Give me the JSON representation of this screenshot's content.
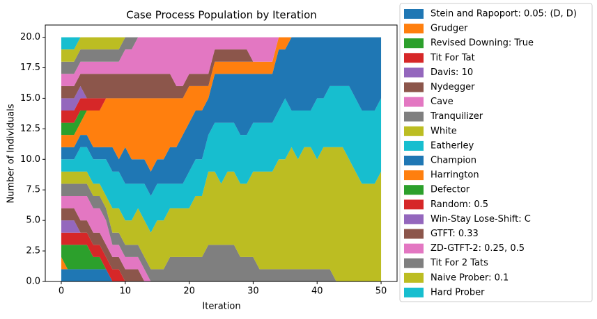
{
  "chart_data": {
    "type": "stackedarea",
    "title": "Case Process Population by Iteration",
    "x_label": "Iteration",
    "y_label": "Number of Individuals",
    "x": [
      0,
      1,
      2,
      3,
      4,
      5,
      6,
      7,
      8,
      9,
      10,
      11,
      12,
      13,
      14,
      15,
      16,
      17,
      18,
      19,
      20,
      21,
      22,
      23,
      24,
      25,
      26,
      27,
      28,
      29,
      30,
      31,
      32,
      33,
      34,
      35,
      36,
      37,
      38,
      39,
      40,
      41,
      42,
      43,
      44,
      45,
      46,
      47,
      48,
      49,
      50
    ],
    "xlim": [
      -2.5,
      52.5
    ],
    "xticks": [
      0,
      10,
      20,
      30,
      40,
      50
    ],
    "ylim": [
      0,
      21
    ],
    "yticks": [
      {
        "value": 0,
        "label": "0.0"
      },
      {
        "value": 2.5,
        "label": "2.5"
      },
      {
        "value": 5,
        "label": "5.0"
      },
      {
        "value": 7.5,
        "label": "7.5"
      },
      {
        "value": 10,
        "label": "10.0"
      },
      {
        "value": 12.5,
        "label": "12.5"
      },
      {
        "value": 15,
        "label": "15.0"
      },
      {
        "value": 17.5,
        "label": "17.5"
      },
      {
        "value": 20,
        "label": "20.0"
      }
    ],
    "legend": "outside-right",
    "series": [
      {
        "name": "Stein and Rapoport: 0.05: (D, D)",
        "color": "#1f77b4",
        "values": [
          1,
          1,
          1,
          1,
          1,
          1,
          1,
          1,
          0,
          0,
          0,
          0,
          0,
          0,
          0,
          0,
          0,
          0,
          0,
          0,
          0,
          0,
          0,
          0,
          0,
          0,
          0,
          0,
          0,
          0,
          0,
          0,
          0,
          0,
          0,
          0,
          0,
          0,
          0,
          0,
          0,
          0,
          0,
          0,
          0,
          0,
          0,
          0,
          0,
          0,
          0
        ]
      },
      {
        "name": "Grudger",
        "color": "#ff7f0e",
        "values": [
          1,
          0,
          0,
          0,
          0,
          0,
          0,
          0,
          0,
          0,
          0,
          0,
          0,
          0,
          0,
          0,
          0,
          0,
          0,
          0,
          0,
          0,
          0,
          0,
          0,
          0,
          0,
          0,
          0,
          0,
          0,
          0,
          0,
          0,
          0,
          0,
          0,
          0,
          0,
          0,
          0,
          0,
          0,
          0,
          0,
          0,
          0,
          0,
          0,
          0,
          0
        ]
      },
      {
        "name": "Revised Downing: True",
        "color": "#2ca02c",
        "values": [
          1,
          2,
          2,
          2,
          2,
          1,
          1,
          0,
          0,
          0,
          0,
          0,
          0,
          0,
          0,
          0,
          0,
          0,
          0,
          0,
          0,
          0,
          0,
          0,
          0,
          0,
          0,
          0,
          0,
          0,
          0,
          0,
          0,
          0,
          0,
          0,
          0,
          0,
          0,
          0,
          0,
          0,
          0,
          0,
          0,
          0,
          0,
          0,
          0,
          0,
          0
        ]
      },
      {
        "name": "Tit For Tat",
        "color": "#d62728",
        "values": [
          1,
          1,
          1,
          1,
          1,
          1,
          1,
          1,
          1,
          1,
          0,
          0,
          0,
          0,
          0,
          0,
          0,
          0,
          0,
          0,
          0,
          0,
          0,
          0,
          0,
          0,
          0,
          0,
          0,
          0,
          0,
          0,
          0,
          0,
          0,
          0,
          0,
          0,
          0,
          0,
          0,
          0,
          0,
          0,
          0,
          0,
          0,
          0,
          0,
          0,
          0
        ]
      },
      {
        "name": "Davis: 10",
        "color": "#9467bd",
        "values": [
          1,
          1,
          1,
          0,
          0,
          0,
          0,
          0,
          0,
          0,
          0,
          0,
          0,
          0,
          0,
          0,
          0,
          0,
          0,
          0,
          0,
          0,
          0,
          0,
          0,
          0,
          0,
          0,
          0,
          0,
          0,
          0,
          0,
          0,
          0,
          0,
          0,
          0,
          0,
          0,
          0,
          0,
          0,
          0,
          0,
          0,
          0,
          0,
          0,
          0,
          0
        ]
      },
      {
        "name": "Nydegger",
        "color": "#8c564b",
        "values": [
          1,
          1,
          1,
          1,
          1,
          1,
          1,
          1,
          1,
          1,
          1,
          1,
          1,
          0,
          0,
          0,
          0,
          0,
          0,
          0,
          0,
          0,
          0,
          0,
          0,
          0,
          0,
          0,
          0,
          0,
          0,
          0,
          0,
          0,
          0,
          0,
          0,
          0,
          0,
          0,
          0,
          0,
          0,
          0,
          0,
          0,
          0,
          0,
          0,
          0,
          0
        ]
      },
      {
        "name": "Cave",
        "color": "#e377c2",
        "values": [
          1,
          1,
          1,
          2,
          2,
          2,
          2,
          2,
          1,
          1,
          1,
          1,
          1,
          1,
          0,
          0,
          0,
          0,
          0,
          0,
          0,
          0,
          0,
          0,
          0,
          0,
          0,
          0,
          0,
          0,
          0,
          0,
          0,
          0,
          0,
          0,
          0,
          0,
          0,
          0,
          0,
          0,
          0,
          0,
          0,
          0,
          0,
          0,
          0,
          0,
          0
        ]
      },
      {
        "name": "Tranquilizer",
        "color": "#7f7f7f",
        "values": [
          1,
          1,
          1,
          1,
          1,
          1,
          1,
          1,
          1,
          1,
          1,
          1,
          1,
          1,
          1,
          1,
          1,
          2,
          2,
          2,
          2,
          2,
          2,
          3,
          3,
          3,
          3,
          3,
          2,
          2,
          2,
          1,
          1,
          1,
          1,
          1,
          1,
          1,
          1,
          1,
          1,
          1,
          1,
          0,
          0,
          0,
          0,
          0,
          0,
          0,
          0
        ]
      },
      {
        "name": "White",
        "color": "#bcbd22",
        "values": [
          1,
          1,
          1,
          1,
          1,
          1,
          1,
          1,
          2,
          2,
          2,
          2,
          3,
          3,
          3,
          4,
          4,
          4,
          4,
          4,
          4,
          5,
          5,
          6,
          6,
          5,
          6,
          6,
          6,
          6,
          7,
          8,
          8,
          8,
          9,
          9,
          10,
          9,
          10,
          10,
          9,
          10,
          10,
          11,
          11,
          10,
          9,
          8,
          8,
          8,
          9
        ]
      },
      {
        "name": "Eatherley",
        "color": "#17becf",
        "values": [
          1,
          1,
          1,
          2,
          2,
          2,
          2,
          3,
          3,
          3,
          3,
          3,
          2,
          3,
          3,
          3,
          3,
          2,
          2,
          2,
          3,
          3,
          3,
          3,
          4,
          5,
          4,
          4,
          4,
          4,
          4,
          4,
          4,
          4,
          4,
          5,
          3,
          4,
          3,
          3,
          5,
          4,
          5,
          5,
          5,
          6,
          6,
          6,
          6,
          6,
          6
        ]
      },
      {
        "name": "Champion",
        "color": "#1f77b4",
        "values": [
          1,
          1,
          1,
          1,
          1,
          1,
          1,
          1,
          2,
          1,
          3,
          2,
          2,
          2,
          2,
          2,
          2,
          3,
          3,
          4,
          4,
          4,
          4,
          3,
          4,
          4,
          4,
          4,
          5,
          5,
          4,
          4,
          4,
          4,
          5,
          4,
          6,
          6,
          6,
          6,
          5,
          5,
          4,
          4,
          4,
          4,
          5,
          6,
          6,
          6,
          5
        ]
      },
      {
        "name": "Harrington",
        "color": "#ff7f0e",
        "values": [
          1,
          1,
          1,
          1,
          2,
          3,
          3,
          4,
          4,
          5,
          4,
          5,
          5,
          5,
          6,
          5,
          5,
          4,
          4,
          3,
          3,
          2,
          2,
          1,
          1,
          1,
          1,
          1,
          1,
          1,
          1,
          1,
          1,
          1,
          1,
          1,
          0,
          0,
          0,
          0,
          0,
          0,
          0,
          0,
          0,
          0,
          0,
          0,
          0,
          0,
          0
        ]
      },
      {
        "name": "Defector",
        "color": "#2ca02c",
        "values": [
          1,
          1,
          1,
          1,
          0,
          0,
          0,
          0,
          0,
          0,
          0,
          0,
          0,
          0,
          0,
          0,
          0,
          0,
          0,
          0,
          0,
          0,
          0,
          0,
          0,
          0,
          0,
          0,
          0,
          0,
          0,
          0,
          0,
          0,
          0,
          0,
          0,
          0,
          0,
          0,
          0,
          0,
          0,
          0,
          0,
          0,
          0,
          0,
          0,
          0,
          0
        ]
      },
      {
        "name": "Random: 0.5",
        "color": "#d62728",
        "values": [
          1,
          1,
          1,
          1,
          1,
          1,
          1,
          0,
          0,
          0,
          0,
          0,
          0,
          0,
          0,
          0,
          0,
          0,
          0,
          0,
          0,
          0,
          0,
          0,
          0,
          0,
          0,
          0,
          0,
          0,
          0,
          0,
          0,
          0,
          0,
          0,
          0,
          0,
          0,
          0,
          0,
          0,
          0,
          0,
          0,
          0,
          0,
          0,
          0,
          0,
          0
        ]
      },
      {
        "name": "Win-Stay Lose-Shift: C",
        "color": "#9467bd",
        "values": [
          1,
          1,
          1,
          1,
          0,
          0,
          0,
          0,
          0,
          0,
          0,
          0,
          0,
          0,
          0,
          0,
          0,
          0,
          0,
          0,
          0,
          0,
          0,
          0,
          0,
          0,
          0,
          0,
          0,
          0,
          0,
          0,
          0,
          0,
          0,
          0,
          0,
          0,
          0,
          0,
          0,
          0,
          0,
          0,
          0,
          0,
          0,
          0,
          0,
          0,
          0
        ]
      },
      {
        "name": "GTFT: 0.33",
        "color": "#8c564b",
        "values": [
          1,
          1,
          1,
          1,
          2,
          2,
          2,
          2,
          2,
          2,
          2,
          2,
          2,
          2,
          2,
          2,
          2,
          2,
          1,
          1,
          1,
          1,
          1,
          1,
          1,
          1,
          1,
          1,
          1,
          1,
          0,
          0,
          0,
          0,
          0,
          0,
          0,
          0,
          0,
          0,
          0,
          0,
          0,
          0,
          0,
          0,
          0,
          0,
          0,
          0,
          0
        ]
      },
      {
        "name": "ZD-GTFT-2: 0.25, 0.5",
        "color": "#e377c2",
        "values": [
          1,
          1,
          1,
          1,
          1,
          1,
          1,
          1,
          1,
          1,
          2,
          2,
          3,
          3,
          3,
          3,
          3,
          3,
          4,
          4,
          3,
          3,
          3,
          3,
          1,
          1,
          1,
          1,
          1,
          1,
          2,
          2,
          2,
          2,
          0,
          0,
          0,
          0,
          0,
          0,
          0,
          0,
          0,
          0,
          0,
          0,
          0,
          0,
          0,
          0,
          0
        ]
      },
      {
        "name": "Tit For 2 Tats",
        "color": "#7f7f7f",
        "values": [
          1,
          1,
          1,
          1,
          1,
          1,
          1,
          1,
          1,
          1,
          1,
          1,
          0,
          0,
          0,
          0,
          0,
          0,
          0,
          0,
          0,
          0,
          0,
          0,
          0,
          0,
          0,
          0,
          0,
          0,
          0,
          0,
          0,
          0,
          0,
          0,
          0,
          0,
          0,
          0,
          0,
          0,
          0,
          0,
          0,
          0,
          0,
          0,
          0,
          0,
          0
        ]
      },
      {
        "name": "Naive Prober: 0.1",
        "color": "#bcbd22",
        "values": [
          1,
          1,
          1,
          1,
          1,
          1,
          1,
          1,
          1,
          1,
          0,
          0,
          0,
          0,
          0,
          0,
          0,
          0,
          0,
          0,
          0,
          0,
          0,
          0,
          0,
          0,
          0,
          0,
          0,
          0,
          0,
          0,
          0,
          0,
          0,
          0,
          0,
          0,
          0,
          0,
          0,
          0,
          0,
          0,
          0,
          0,
          0,
          0,
          0,
          0,
          0
        ]
      },
      {
        "name": "Hard Prober",
        "color": "#17becf",
        "values": [
          1,
          1,
          1,
          0,
          0,
          0,
          0,
          0,
          0,
          0,
          0,
          0,
          0,
          0,
          0,
          0,
          0,
          0,
          0,
          0,
          0,
          0,
          0,
          0,
          0,
          0,
          0,
          0,
          0,
          0,
          0,
          0,
          0,
          0,
          0,
          0,
          0,
          0,
          0,
          0,
          0,
          0,
          0,
          0,
          0,
          0,
          0,
          0,
          0,
          0,
          0
        ]
      }
    ]
  }
}
